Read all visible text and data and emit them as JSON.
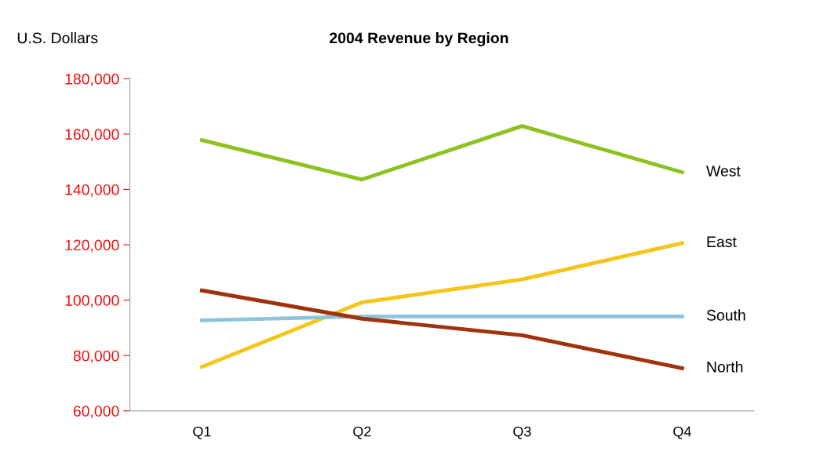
{
  "chart_data": {
    "type": "line",
    "title": "2004 Revenue by Region",
    "ylabel": "U.S. Dollars",
    "categories": [
      "Q1",
      "Q2",
      "Q3",
      "Q4"
    ],
    "series": [
      {
        "name": "West",
        "color": "#8dc21f",
        "values": [
          157800,
          143600,
          162900,
          146200
        ]
      },
      {
        "name": "East",
        "color": "#f5c518",
        "values": [
          75900,
          99200,
          107500,
          120600
        ]
      },
      {
        "name": "South",
        "color": "#8ec4de",
        "values": [
          92700,
          94100,
          94100,
          94100
        ]
      },
      {
        "name": "North",
        "color": "#a0320c",
        "values": [
          103500,
          93300,
          87300,
          75400
        ]
      }
    ],
    "ylim": [
      60000,
      180000
    ],
    "yticks": [
      {
        "value": 60000,
        "label": "60,000"
      },
      {
        "value": 80000,
        "label": "80,000"
      },
      {
        "value": 100000,
        "label": "100,000"
      },
      {
        "value": 120000,
        "label": "120,000"
      },
      {
        "value": 140000,
        "label": "140,000"
      },
      {
        "value": 160000,
        "label": "160,000"
      },
      {
        "value": 180000,
        "label": "180,000"
      }
    ],
    "grid": false,
    "legend": false,
    "marker": "none",
    "line_style": "solid"
  }
}
